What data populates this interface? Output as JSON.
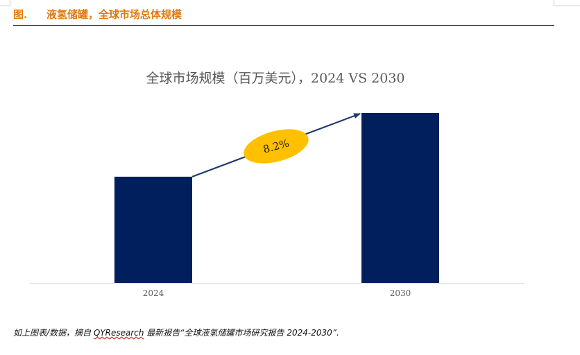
{
  "figure": {
    "number": "图.",
    "title": "液氢储罐，全球市场总体规模"
  },
  "footnote": {
    "prefix": "如上图表/数据，摘自 ",
    "source": "QYResearch",
    "suffix": " 最新报告“全球液氢储罐市场研究报告 2024-2030”."
  },
  "colors": {
    "bar": "#001f5c",
    "arrow": "#1f3a6e",
    "badge": "#ffc000",
    "accent": "#e2790c"
  },
  "chart_data": {
    "type": "bar",
    "title": "全球市场规模（百万美元），2024 VS 2030",
    "categories": [
      "2024",
      "2030"
    ],
    "values": [
      100,
      160
    ],
    "ylim": [
      0,
      160
    ],
    "grid": false,
    "legend": "none",
    "annotation": {
      "text": "8.2%",
      "shape": "ellipse",
      "arrow": "from 2024 bar to 2030 bar"
    }
  }
}
